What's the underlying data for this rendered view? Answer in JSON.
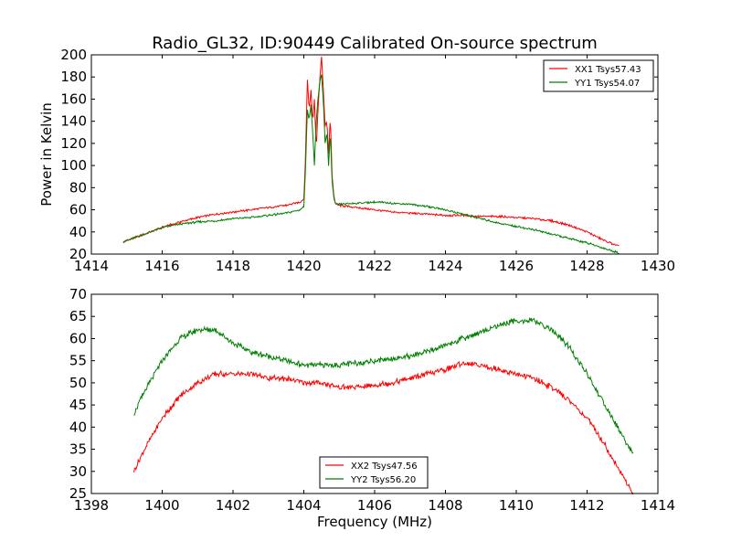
{
  "figure": {
    "title": "Radio_GL32, ID:90449 Calibrated On-source spectrum",
    "xlabel": "Frequency (MHz)",
    "ylabel": "Power in Kelvin"
  },
  "chart_data": [
    {
      "type": "line",
      "title": "Radio_GL32, ID:90449 Calibrated On-source spectrum",
      "ylabel": "Power in Kelvin",
      "xlabel": "",
      "xlim": [
        1414,
        1430
      ],
      "ylim": [
        20,
        200
      ],
      "xticks": [
        "1414",
        "1416",
        "1418",
        "1420",
        "1422",
        "1424",
        "1426",
        "1428",
        "1430"
      ],
      "yticks": [
        "20",
        "40",
        "60",
        "80",
        "100",
        "120",
        "140",
        "160",
        "180",
        "200"
      ],
      "grid": false,
      "legend_position": "top-right",
      "series": [
        {
          "name": "XX1 Tsys57.43",
          "color": "#ff0000",
          "x": [
            1414.9,
            1415.5,
            1416.0,
            1416.5,
            1417.0,
            1417.5,
            1418.0,
            1418.5,
            1419.0,
            1419.5,
            1419.9,
            1420.0,
            1420.05,
            1420.1,
            1420.15,
            1420.2,
            1420.25,
            1420.3,
            1420.35,
            1420.4,
            1420.45,
            1420.5,
            1420.55,
            1420.6,
            1420.65,
            1420.7,
            1420.75,
            1420.8,
            1420.85,
            1420.9,
            1421.0,
            1421.5,
            1422.0,
            1422.5,
            1423.0,
            1423.5,
            1424.0,
            1424.5,
            1425.0,
            1425.5,
            1426.0,
            1426.5,
            1427.0,
            1427.5,
            1428.0,
            1428.5,
            1428.9
          ],
          "y": [
            31,
            38,
            44,
            49,
            53,
            56,
            58,
            60,
            62,
            64,
            67,
            70,
            110,
            178,
            150,
            168,
            140,
            160,
            115,
            150,
            178,
            198,
            170,
            135,
            140,
            110,
            145,
            90,
            72,
            65,
            64,
            62,
            60,
            58,
            57,
            56,
            55,
            55,
            54,
            54,
            53,
            52,
            50,
            46,
            40,
            32,
            27
          ]
        },
        {
          "name": "YY1 Tsys54.07",
          "color": "#008000",
          "x": [
            1414.9,
            1415.5,
            1416.0,
            1416.5,
            1417.0,
            1417.5,
            1418.0,
            1418.5,
            1419.0,
            1419.5,
            1419.9,
            1420.0,
            1420.05,
            1420.1,
            1420.15,
            1420.2,
            1420.25,
            1420.3,
            1420.35,
            1420.4,
            1420.45,
            1420.5,
            1420.55,
            1420.6,
            1420.65,
            1420.7,
            1420.75,
            1420.8,
            1420.85,
            1420.9,
            1421.0,
            1421.5,
            1422.0,
            1422.5,
            1423.0,
            1423.5,
            1424.0,
            1424.5,
            1425.0,
            1425.5,
            1426.0,
            1426.5,
            1427.0,
            1427.5,
            1428.0,
            1428.5,
            1428.9
          ],
          "y": [
            31,
            38,
            44,
            47,
            49,
            50,
            52,
            53,
            55,
            57,
            60,
            63,
            100,
            150,
            142,
            155,
            130,
            100,
            140,
            160,
            175,
            182,
            160,
            120,
            130,
            100,
            130,
            85,
            70,
            65,
            65,
            66,
            67,
            66,
            65,
            63,
            60,
            56,
            52,
            48,
            45,
            42,
            38,
            34,
            30,
            25,
            21
          ]
        }
      ]
    },
    {
      "type": "line",
      "title": "",
      "ylabel": "",
      "xlabel": "Frequency (MHz)",
      "xlim": [
        1398,
        1414
      ],
      "ylim": [
        25,
        70
      ],
      "xticks": [
        "1398",
        "1400",
        "1402",
        "1404",
        "1406",
        "1408",
        "1410",
        "1412",
        "1414"
      ],
      "yticks": [
        "25",
        "30",
        "35",
        "40",
        "45",
        "50",
        "55",
        "60",
        "65",
        "70"
      ],
      "grid": false,
      "legend_position": "bottom-center",
      "series": [
        {
          "name": "XX2 Tsys47.56",
          "color": "#ff0000",
          "x": [
            1399.2,
            1399.5,
            1400.0,
            1400.5,
            1401.0,
            1401.5,
            1402.0,
            1402.5,
            1403.0,
            1403.5,
            1404.0,
            1404.5,
            1405.0,
            1405.5,
            1406.0,
            1406.5,
            1407.0,
            1407.5,
            1408.0,
            1408.5,
            1409.0,
            1409.5,
            1410.0,
            1410.5,
            1411.0,
            1411.5,
            1412.0,
            1412.5,
            1413.0,
            1413.3
          ],
          "y": [
            30,
            35,
            42,
            47,
            50,
            52,
            52,
            52,
            51,
            51,
            50,
            50,
            49,
            49,
            49.5,
            50,
            51,
            52,
            53,
            54.5,
            54,
            53,
            52,
            51,
            49,
            46,
            42,
            36,
            29,
            25
          ]
        },
        {
          "name": "YY2 Tsys56.20",
          "color": "#008000",
          "x": [
            1399.2,
            1399.5,
            1400.0,
            1400.5,
            1401.0,
            1401.5,
            1402.0,
            1402.5,
            1403.0,
            1403.5,
            1404.0,
            1404.5,
            1405.0,
            1405.5,
            1406.0,
            1406.5,
            1407.0,
            1407.5,
            1408.0,
            1408.5,
            1409.0,
            1409.5,
            1410.0,
            1410.5,
            1411.0,
            1411.5,
            1412.0,
            1412.5,
            1413.0,
            1413.3
          ],
          "y": [
            43,
            48,
            55,
            60,
            62,
            62,
            59,
            57,
            56,
            55,
            54,
            54,
            54,
            54.5,
            55,
            55.5,
            56,
            57,
            58.5,
            60,
            61.5,
            63,
            64,
            64,
            62,
            58,
            52,
            45,
            38,
            34
          ]
        }
      ]
    }
  ]
}
